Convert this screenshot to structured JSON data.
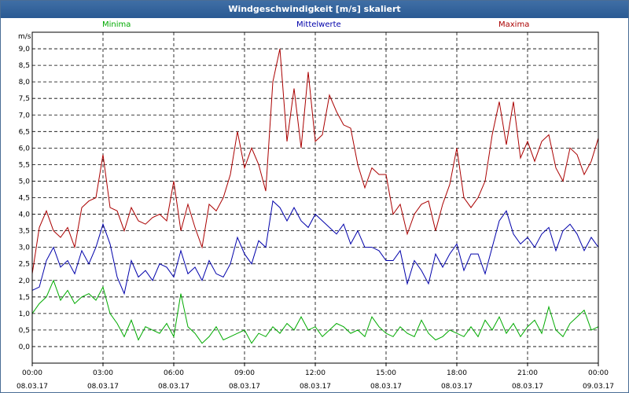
{
  "window": {
    "title": "Windgeschwindigkeit [m/s] skaliert"
  },
  "colors": {
    "minima": "#00aa00",
    "mittel": "#0000aa",
    "maxima": "#aa0000",
    "grid": "#000000"
  },
  "chart_data": {
    "type": "line",
    "ylabel": "m/s",
    "ylim": [
      -0.5,
      9.5
    ],
    "yticks": [
      "9,0",
      "8,5",
      "8,0",
      "7,5",
      "7,0",
      "6,5",
      "6,0",
      "5,5",
      "5,0",
      "4,5",
      "4,0",
      "3,5",
      "3,0",
      "2,5",
      "2,0",
      "1,5",
      "1,0",
      "0,5",
      "0,0"
    ],
    "ytick_values": [
      9.0,
      8.5,
      8.0,
      7.5,
      7.0,
      6.5,
      6.0,
      5.5,
      5.0,
      4.5,
      4.0,
      3.5,
      3.0,
      2.5,
      2.0,
      1.5,
      1.0,
      0.5,
      0.0
    ],
    "xlim": [
      0,
      24
    ],
    "xticks": [
      {
        "time": "00:00",
        "date": "08.03.17"
      },
      {
        "time": "03:00",
        "date": "08.03.17"
      },
      {
        "time": "06:00",
        "date": "08.03.17"
      },
      {
        "time": "09:00",
        "date": "08.03.17"
      },
      {
        "time": "12:00",
        "date": "08.03.17"
      },
      {
        "time": "15:00",
        "date": "08.03.17"
      },
      {
        "time": "18:00",
        "date": "08.03.17"
      },
      {
        "time": "21:00",
        "date": "08.03.17"
      },
      {
        "time": "00:00",
        "date": "09.03.17"
      }
    ],
    "series": [
      {
        "name": "Minima",
        "color": "#00aa00",
        "x": [
          0,
          0.3,
          0.6,
          0.9,
          1.2,
          1.5,
          1.8,
          2.1,
          2.4,
          2.7,
          3.0,
          3.3,
          3.6,
          3.9,
          4.2,
          4.5,
          4.8,
          5.1,
          5.4,
          5.7,
          6.0,
          6.3,
          6.6,
          6.9,
          7.2,
          7.5,
          7.8,
          8.1,
          8.4,
          8.7,
          9.0,
          9.3,
          9.6,
          9.9,
          10.2,
          10.5,
          10.8,
          11.1,
          11.4,
          11.7,
          12.0,
          12.3,
          12.6,
          12.9,
          13.2,
          13.5,
          13.8,
          14.1,
          14.4,
          14.7,
          15.0,
          15.3,
          15.6,
          15.9,
          16.2,
          16.5,
          16.8,
          17.1,
          17.4,
          17.7,
          18.0,
          18.3,
          18.6,
          18.9,
          19.2,
          19.5,
          19.8,
          20.1,
          20.4,
          20.7,
          21.0,
          21.3,
          21.6,
          21.9,
          22.2,
          22.5,
          22.8,
          23.1,
          23.4,
          23.7,
          24.0
        ],
        "y": [
          1.0,
          1.3,
          1.5,
          2.0,
          1.4,
          1.7,
          1.3,
          1.5,
          1.6,
          1.4,
          1.8,
          1.0,
          0.7,
          0.3,
          0.8,
          0.2,
          0.6,
          0.5,
          0.4,
          0.7,
          0.3,
          1.6,
          0.6,
          0.4,
          0.1,
          0.3,
          0.6,
          0.2,
          0.3,
          0.4,
          0.5,
          0.1,
          0.4,
          0.3,
          0.6,
          0.4,
          0.7,
          0.5,
          0.9,
          0.5,
          0.6,
          0.3,
          0.5,
          0.7,
          0.6,
          0.4,
          0.5,
          0.3,
          0.9,
          0.6,
          0.4,
          0.3,
          0.6,
          0.4,
          0.3,
          0.8,
          0.4,
          0.2,
          0.3,
          0.5,
          0.4,
          0.3,
          0.6,
          0.3,
          0.8,
          0.5,
          0.9,
          0.4,
          0.7,
          0.3,
          0.6,
          0.8,
          0.4,
          1.2,
          0.5,
          0.3,
          0.7,
          0.9,
          1.1,
          0.5,
          0.6
        ]
      },
      {
        "name": "Mittelwerte",
        "color": "#0000aa",
        "x": [
          0,
          0.3,
          0.6,
          0.9,
          1.2,
          1.5,
          1.8,
          2.1,
          2.4,
          2.7,
          3.0,
          3.3,
          3.6,
          3.9,
          4.2,
          4.5,
          4.8,
          5.1,
          5.4,
          5.7,
          6.0,
          6.3,
          6.6,
          6.9,
          7.2,
          7.5,
          7.8,
          8.1,
          8.4,
          8.7,
          9.0,
          9.3,
          9.6,
          9.9,
          10.2,
          10.5,
          10.8,
          11.1,
          11.4,
          11.7,
          12.0,
          12.3,
          12.6,
          12.9,
          13.2,
          13.5,
          13.8,
          14.1,
          14.4,
          14.7,
          15.0,
          15.3,
          15.6,
          15.9,
          16.2,
          16.5,
          16.8,
          17.1,
          17.4,
          17.7,
          18.0,
          18.3,
          18.6,
          18.9,
          19.2,
          19.5,
          19.8,
          20.1,
          20.4,
          20.7,
          21.0,
          21.3,
          21.6,
          21.9,
          22.2,
          22.5,
          22.8,
          23.1,
          23.4,
          23.7,
          24.0
        ],
        "y": [
          1.7,
          1.8,
          2.6,
          3.0,
          2.4,
          2.6,
          2.2,
          2.9,
          2.5,
          3.0,
          3.7,
          3.1,
          2.1,
          1.6,
          2.6,
          2.1,
          2.3,
          2.0,
          2.5,
          2.4,
          2.1,
          2.9,
          2.2,
          2.4,
          2.0,
          2.6,
          2.2,
          2.1,
          2.5,
          3.3,
          2.8,
          2.5,
          3.2,
          3.0,
          4.4,
          4.2,
          3.8,
          4.2,
          3.8,
          3.6,
          4.0,
          3.8,
          3.6,
          3.4,
          3.7,
          3.1,
          3.5,
          3.0,
          3.0,
          2.9,
          2.6,
          2.6,
          2.9,
          1.9,
          2.6,
          2.3,
          1.9,
          2.8,
          2.4,
          2.8,
          3.1,
          2.3,
          2.8,
          2.8,
          2.2,
          3.0,
          3.8,
          4.1,
          3.4,
          3.1,
          3.3,
          3.0,
          3.4,
          3.6,
          2.9,
          3.5,
          3.7,
          3.4,
          2.9,
          3.3,
          3.0
        ]
      },
      {
        "name": "Maxima",
        "color": "#aa0000",
        "x": [
          0,
          0.3,
          0.6,
          0.9,
          1.2,
          1.5,
          1.8,
          2.1,
          2.4,
          2.7,
          3.0,
          3.3,
          3.6,
          3.9,
          4.2,
          4.5,
          4.8,
          5.1,
          5.4,
          5.7,
          6.0,
          6.3,
          6.6,
          6.9,
          7.2,
          7.5,
          7.8,
          8.1,
          8.4,
          8.7,
          9.0,
          9.3,
          9.6,
          9.9,
          10.2,
          10.5,
          10.8,
          11.1,
          11.4,
          11.7,
          12.0,
          12.3,
          12.6,
          12.9,
          13.2,
          13.5,
          13.8,
          14.1,
          14.4,
          14.7,
          15.0,
          15.3,
          15.6,
          15.9,
          16.2,
          16.5,
          16.8,
          17.1,
          17.4,
          17.7,
          18.0,
          18.3,
          18.6,
          18.9,
          19.2,
          19.5,
          19.8,
          20.1,
          20.4,
          20.7,
          21.0,
          21.3,
          21.6,
          21.9,
          22.2,
          22.5,
          22.8,
          23.1,
          23.4,
          23.7,
          24.0
        ],
        "y": [
          2.2,
          3.6,
          4.1,
          3.5,
          3.3,
          3.6,
          3.0,
          4.2,
          4.4,
          4.5,
          5.8,
          4.2,
          4.1,
          3.5,
          4.2,
          3.8,
          3.7,
          3.9,
          4.0,
          3.8,
          5.0,
          3.5,
          4.3,
          3.6,
          3.0,
          4.3,
          4.1,
          4.5,
          5.2,
          6.5,
          5.4,
          6.0,
          5.5,
          4.7,
          8.0,
          9.0,
          6.2,
          7.8,
          6.0,
          8.3,
          6.2,
          6.4,
          7.6,
          7.1,
          6.7,
          6.6,
          5.5,
          4.8,
          5.4,
          5.2,
          5.2,
          4.0,
          4.3,
          3.4,
          4.0,
          4.3,
          4.4,
          3.5,
          4.3,
          4.9,
          6.0,
          4.5,
          4.2,
          4.5,
          5.0,
          6.4,
          7.4,
          6.1,
          7.4,
          5.7,
          6.2,
          5.6,
          6.2,
          6.4,
          5.4,
          5.0,
          6.0,
          5.8,
          5.2,
          5.6,
          6.3
        ]
      }
    ]
  }
}
